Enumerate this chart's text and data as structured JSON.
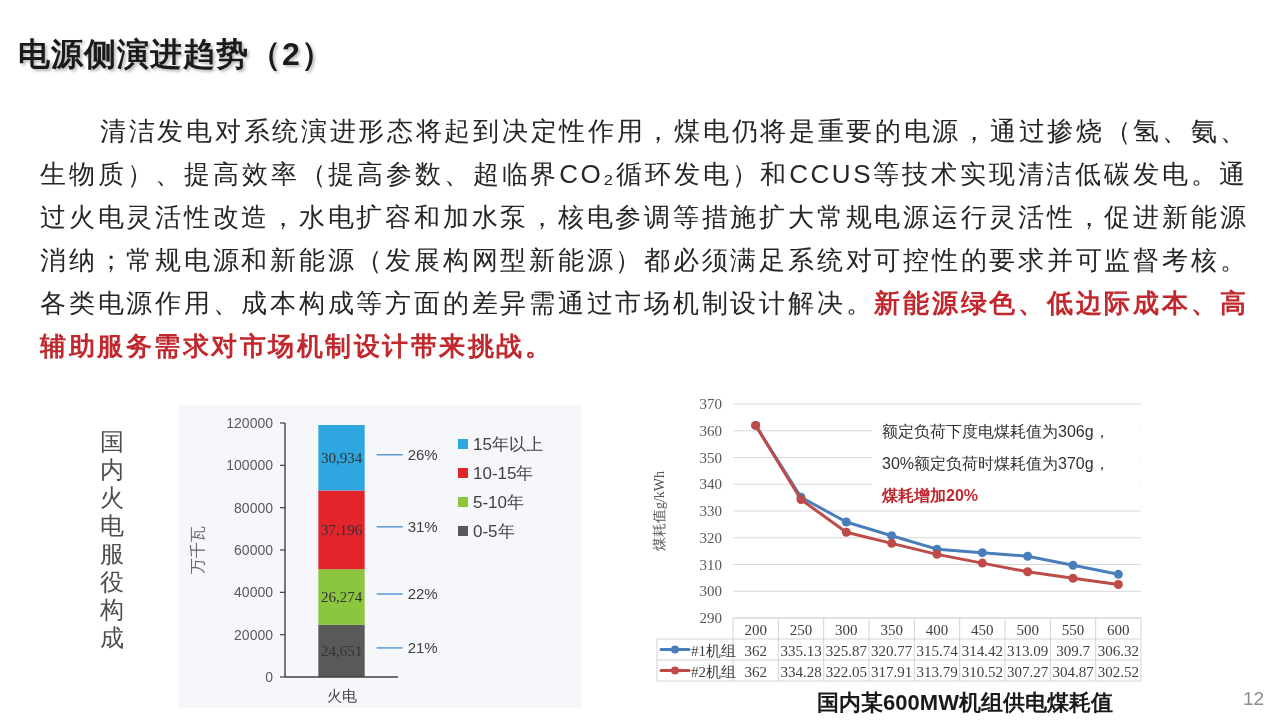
{
  "chart_data": [
    {
      "type": "other",
      "title": "电源侧演进趋势（2）",
      "annotations": [
        "清洁发电对系统演进形态将起到决定性作用，煤电仍将是重要的电源，通过掺烧（氢、氨、生物质）、提高效率（提高参数、超临界CO₂循环发电）和CCUS等技术实现清洁低碳发电。通过火电灵活性改造，水电扩容和加水泵，核电参调等措施扩大常规电源运行灵活性，促进新能源消纳；常规电源和新能源（发展构网型新能源）都必须满足系统对可控性的要求并可监督考核。各类电源作用、成本构成等方面的差异需通过市场机制设计解决。**新能源绿色、低边际成本、高辅助服务需求对市场机制设计带来挑战。**",
        "12"
      ]
    },
    {
      "type": "bar",
      "title": "国内火电服役构成",
      "ylabel": "万千瓦",
      "stacked": true,
      "categories": [
        "火电"
      ],
      "ylim": [
        0,
        120000
      ],
      "yticks": [
        0,
        20000,
        40000,
        60000,
        80000,
        100000,
        120000
      ],
      "legend": "right",
      "series": [
        {
          "name": "0-5年",
          "color": "#595959",
          "values": [
            24651
          ],
          "value_labels": [
            "24,651"
          ]
        },
        {
          "name": "5-10年",
          "color": "#8cc63f",
          "values": [
            26274
          ],
          "value_labels": [
            "26,274"
          ]
        },
        {
          "name": "10-15年",
          "color": "#e3242b",
          "values": [
            37196
          ],
          "value_labels": [
            "37,196"
          ]
        },
        {
          "name": "15年以上",
          "color": "#2ea6df",
          "values": [
            30934
          ],
          "value_labels": [
            "30,934"
          ]
        }
      ],
      "annotations": [
        "21%",
        "22%",
        "31%",
        "26%"
      ]
    },
    {
      "type": "line",
      "title": "国内某600MW机组供电煤耗值",
      "ylabel": "煤耗值g/kWh",
      "categories": [
        "200",
        "250",
        "300",
        "350",
        "400",
        "450",
        "500",
        "550",
        "600"
      ],
      "ylim": [
        290,
        370
      ],
      "yticks": [
        290,
        300,
        310,
        320,
        330,
        340,
        350,
        360,
        370
      ],
      "grid": "y",
      "marker": "circle",
      "legend": "bottom",
      "data_labels": true,
      "series": [
        {
          "name": "#1机组",
          "color": "#4a7ebb",
          "values": [
            362,
            335.13,
            325.87,
            320.77,
            315.74,
            314.42,
            313.09,
            309.7,
            306.32
          ]
        },
        {
          "name": "#2机组",
          "color": "#be4b48",
          "values": [
            362,
            334.28,
            322.05,
            317.91,
            313.79,
            310.52,
            307.27,
            304.87,
            302.52
          ]
        }
      ],
      "annotations": [
        "额定负荷下度电煤耗值为306g，",
        "30%额定负荷时煤耗值为370g，",
        "**煤耗增加20%**"
      ]
    }
  ]
}
